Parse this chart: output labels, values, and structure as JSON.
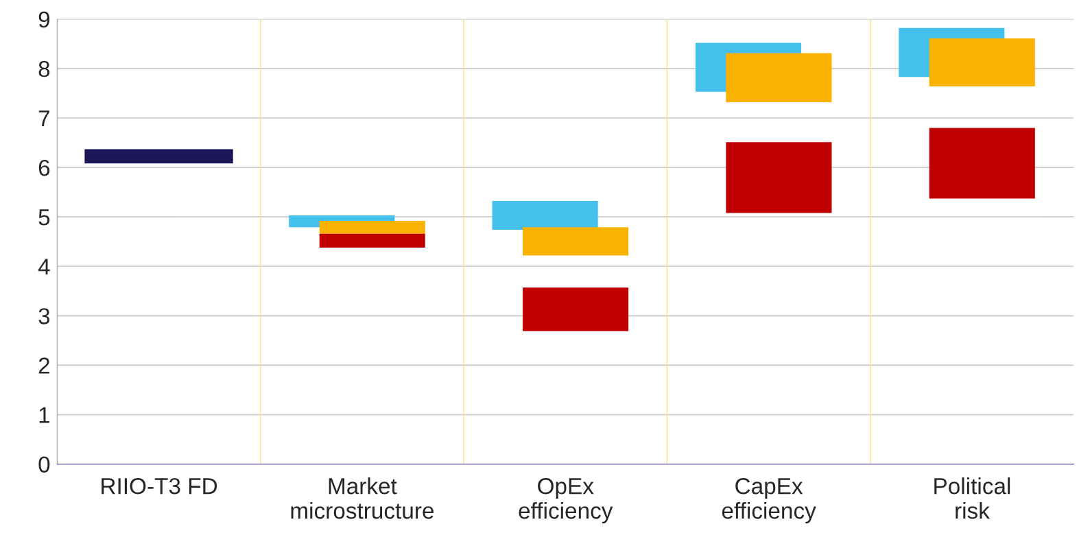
{
  "chart_data": {
    "type": "bar",
    "categories": [
      "RIIO-T3 FD",
      "Market\nmicrostructure",
      "OpEx\nefficiency",
      "CapEx\nefficiency",
      "Political\nrisk"
    ],
    "series": [
      {
        "color": "#1b1656",
        "base": [
          6.08,
          null,
          null,
          null,
          null
        ],
        "values": [
          0.29,
          null,
          null,
          null,
          null
        ]
      },
      {
        "color": "#44c0ec",
        "base": [
          null,
          4.79,
          4.74,
          7.53,
          7.83
        ],
        "values": [
          null,
          0.24,
          0.58,
          0.99,
          0.99
        ]
      },
      {
        "color": "#f9b200",
        "base": [
          null,
          4.66,
          4.22,
          7.32,
          7.64
        ],
        "values": [
          null,
          0.26,
          0.57,
          0.99,
          0.97
        ]
      },
      {
        "color": "#c00000",
        "base": [
          null,
          4.38,
          2.69,
          5.08,
          5.37
        ],
        "values": [
          null,
          0.28,
          0.88,
          1.43,
          1.43
        ]
      }
    ],
    "ylim": [
      0,
      9
    ],
    "yticks": [
      0,
      1,
      2,
      3,
      4,
      5,
      6,
      7,
      8,
      9
    ],
    "grid": "y",
    "legend": false
  }
}
